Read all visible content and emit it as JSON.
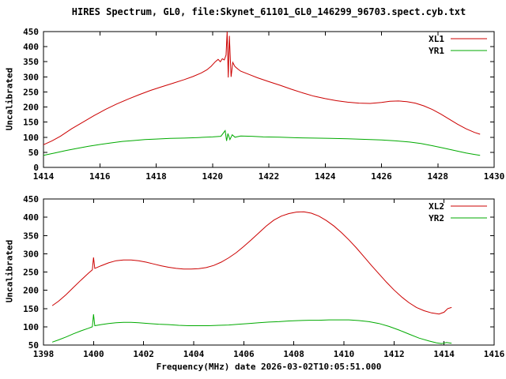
{
  "page": {
    "title": "HIRES Spectrum, GL0, file:Skynet_61101_GL0_146299_96703.spect.cyb.txt",
    "xlabel": "Frequency(MHz) date 2026-03-02T10:05:51.000"
  },
  "colors": {
    "red": "#cc0000",
    "green": "#00aa00",
    "axis": "#000000"
  },
  "chart_data": [
    {
      "type": "line",
      "ylabel": "Uncalibrated",
      "xlim": [
        1414,
        1430
      ],
      "ylim": [
        0,
        450
      ],
      "xticks": [
        1414,
        1416,
        1418,
        1420,
        1422,
        1424,
        1426,
        1428,
        1430
      ],
      "yticks": [
        0,
        50,
        100,
        150,
        200,
        250,
        300,
        350,
        400,
        450
      ],
      "grid": false,
      "legend_position": "top-right",
      "series": [
        {
          "name": "XL1",
          "color": "#cc0000",
          "points": [
            [
              1414.0,
              75
            ],
            [
              1414.3,
              88
            ],
            [
              1414.6,
              103
            ],
            [
              1415.0,
              128
            ],
            [
              1415.4,
              150
            ],
            [
              1415.8,
              172
            ],
            [
              1416.2,
              192
            ],
            [
              1416.6,
              210
            ],
            [
              1417.0,
              226
            ],
            [
              1417.4,
              241
            ],
            [
              1417.8,
              255
            ],
            [
              1418.2,
              267
            ],
            [
              1418.6,
              279
            ],
            [
              1419.0,
              291
            ],
            [
              1419.3,
              301
            ],
            [
              1419.6,
              313
            ],
            [
              1419.8,
              323
            ],
            [
              1419.95,
              335
            ],
            [
              1420.1,
              350
            ],
            [
              1420.2,
              358
            ],
            [
              1420.28,
              350
            ],
            [
              1420.35,
              360
            ],
            [
              1420.42,
              356
            ],
            [
              1420.48,
              372
            ],
            [
              1420.52,
              450
            ],
            [
              1420.56,
              298
            ],
            [
              1420.6,
              436
            ],
            [
              1420.66,
              300
            ],
            [
              1420.72,
              348
            ],
            [
              1420.8,
              334
            ],
            [
              1420.9,
              326
            ],
            [
              1421.0,
              319
            ],
            [
              1421.3,
              308
            ],
            [
              1421.6,
              297
            ],
            [
              1422.0,
              284
            ],
            [
              1422.4,
              272
            ],
            [
              1422.8,
              259
            ],
            [
              1423.2,
              247
            ],
            [
              1423.6,
              236
            ],
            [
              1424.0,
              228
            ],
            [
              1424.4,
              221
            ],
            [
              1424.8,
              216
            ],
            [
              1425.2,
              213
            ],
            [
              1425.6,
              212
            ],
            [
              1426.0,
              215
            ],
            [
              1426.3,
              219
            ],
            [
              1426.6,
              220
            ],
            [
              1426.9,
              218
            ],
            [
              1427.2,
              213
            ],
            [
              1427.5,
              204
            ],
            [
              1427.8,
              192
            ],
            [
              1428.1,
              177
            ],
            [
              1428.4,
              160
            ],
            [
              1428.7,
              143
            ],
            [
              1429.0,
              128
            ],
            [
              1429.3,
              116
            ],
            [
              1429.5,
              110
            ]
          ]
        },
        {
          "name": "YR1",
          "color": "#00aa00",
          "points": [
            [
              1414.0,
              40
            ],
            [
              1414.4,
              48
            ],
            [
              1414.8,
              56
            ],
            [
              1415.2,
              63
            ],
            [
              1415.6,
              70
            ],
            [
              1416.0,
              76
            ],
            [
              1416.4,
              81
            ],
            [
              1416.8,
              86
            ],
            [
              1417.2,
              89
            ],
            [
              1417.6,
              92
            ],
            [
              1418.0,
              94
            ],
            [
              1418.5,
              96
            ],
            [
              1419.0,
              97
            ],
            [
              1419.5,
              99
            ],
            [
              1420.0,
              101
            ],
            [
              1420.3,
              103
            ],
            [
              1420.45,
              122
            ],
            [
              1420.5,
              88
            ],
            [
              1420.55,
              112
            ],
            [
              1420.62,
              92
            ],
            [
              1420.7,
              108
            ],
            [
              1420.8,
              100
            ],
            [
              1421.0,
              104
            ],
            [
              1421.4,
              103
            ],
            [
              1421.8,
              101
            ],
            [
              1422.4,
              100
            ],
            [
              1423.0,
              98
            ],
            [
              1423.6,
              97
            ],
            [
              1424.2,
              96
            ],
            [
              1424.8,
              95
            ],
            [
              1425.4,
              93
            ],
            [
              1426.0,
              91
            ],
            [
              1426.5,
              88
            ],
            [
              1427.0,
              84
            ],
            [
              1427.4,
              79
            ],
            [
              1427.8,
              72
            ],
            [
              1428.2,
              64
            ],
            [
              1428.6,
              56
            ],
            [
              1429.0,
              48
            ],
            [
              1429.3,
              43
            ],
            [
              1429.5,
              40
            ]
          ]
        }
      ]
    },
    {
      "type": "line",
      "ylabel": "Uncalibrated",
      "xlim": [
        1398,
        1416
      ],
      "ylim": [
        50,
        450
      ],
      "xticks": [
        1398,
        1400,
        1402,
        1404,
        1406,
        1408,
        1410,
        1412,
        1414,
        1416
      ],
      "yticks": [
        50,
        100,
        150,
        200,
        250,
        300,
        350,
        400,
        450
      ],
      "grid": false,
      "legend_position": "top-right",
      "series": [
        {
          "name": "XL2",
          "color": "#cc0000",
          "points": [
            [
              1398.35,
              158
            ],
            [
              1398.6,
              170
            ],
            [
              1398.9,
              188
            ],
            [
              1399.2,
              208
            ],
            [
              1399.5,
              228
            ],
            [
              1399.8,
              247
            ],
            [
              1399.95,
              256
            ],
            [
              1400.0,
              290
            ],
            [
              1400.05,
              260
            ],
            [
              1400.3,
              267
            ],
            [
              1400.6,
              275
            ],
            [
              1400.9,
              281
            ],
            [
              1401.2,
              283
            ],
            [
              1401.5,
              283
            ],
            [
              1401.8,
              281
            ],
            [
              1402.1,
              277
            ],
            [
              1402.4,
              272
            ],
            [
              1402.7,
              267
            ],
            [
              1403.0,
              263
            ],
            [
              1403.3,
              260
            ],
            [
              1403.6,
              258
            ],
            [
              1403.9,
              258
            ],
            [
              1404.2,
              259
            ],
            [
              1404.5,
              262
            ],
            [
              1404.8,
              268
            ],
            [
              1405.1,
              277
            ],
            [
              1405.4,
              289
            ],
            [
              1405.7,
              303
            ],
            [
              1406.0,
              320
            ],
            [
              1406.3,
              338
            ],
            [
              1406.6,
              357
            ],
            [
              1406.9,
              376
            ],
            [
              1407.2,
              392
            ],
            [
              1407.5,
              403
            ],
            [
              1407.8,
              410
            ],
            [
              1408.1,
              414
            ],
            [
              1408.4,
              415
            ],
            [
              1408.7,
              411
            ],
            [
              1409.0,
              403
            ],
            [
              1409.3,
              391
            ],
            [
              1409.6,
              376
            ],
            [
              1409.9,
              358
            ],
            [
              1410.2,
              338
            ],
            [
              1410.5,
              316
            ],
            [
              1410.8,
              292
            ],
            [
              1411.1,
              268
            ],
            [
              1411.4,
              245
            ],
            [
              1411.7,
              222
            ],
            [
              1412.0,
              201
            ],
            [
              1412.3,
              182
            ],
            [
              1412.6,
              166
            ],
            [
              1412.9,
              153
            ],
            [
              1413.2,
              144
            ],
            [
              1413.5,
              138
            ],
            [
              1413.8,
              135
            ],
            [
              1414.0,
              140
            ],
            [
              1414.15,
              150
            ],
            [
              1414.3,
              153
            ]
          ]
        },
        {
          "name": "YR2",
          "color": "#00aa00",
          "points": [
            [
              1398.35,
              58
            ],
            [
              1398.6,
              64
            ],
            [
              1398.9,
              72
            ],
            [
              1399.2,
              81
            ],
            [
              1399.5,
              89
            ],
            [
              1399.8,
              96
            ],
            [
              1399.95,
              100
            ],
            [
              1400.0,
              134
            ],
            [
              1400.05,
              103
            ],
            [
              1400.3,
              106
            ],
            [
              1400.6,
              109
            ],
            [
              1400.9,
              111
            ],
            [
              1401.2,
              112
            ],
            [
              1401.5,
              112
            ],
            [
              1401.8,
              111
            ],
            [
              1402.2,
              109
            ],
            [
              1402.6,
              107
            ],
            [
              1403.0,
              106
            ],
            [
              1403.4,
              104
            ],
            [
              1403.8,
              103
            ],
            [
              1404.2,
              103
            ],
            [
              1404.6,
              103
            ],
            [
              1405.0,
              104
            ],
            [
              1405.4,
              105
            ],
            [
              1405.8,
              107
            ],
            [
              1406.2,
              109
            ],
            [
              1406.6,
              111
            ],
            [
              1407.0,
              113
            ],
            [
              1407.4,
              114
            ],
            [
              1407.8,
              116
            ],
            [
              1408.2,
              117
            ],
            [
              1408.6,
              118
            ],
            [
              1409.0,
              118
            ],
            [
              1409.4,
              119
            ],
            [
              1409.8,
              119
            ],
            [
              1410.2,
              119
            ],
            [
              1410.6,
              117
            ],
            [
              1411.0,
              114
            ],
            [
              1411.4,
              109
            ],
            [
              1411.8,
              101
            ],
            [
              1412.2,
              91
            ],
            [
              1412.6,
              80
            ],
            [
              1413.0,
              69
            ],
            [
              1413.4,
              61
            ],
            [
              1413.7,
              56
            ],
            [
              1413.9,
              54
            ],
            [
              1414.1,
              57
            ],
            [
              1414.3,
              55
            ]
          ]
        }
      ]
    }
  ]
}
